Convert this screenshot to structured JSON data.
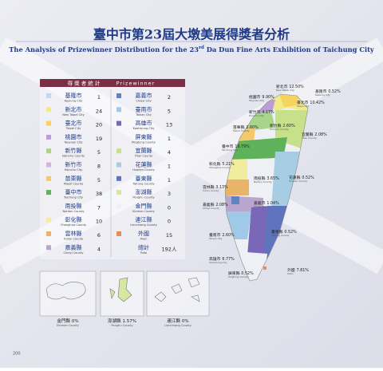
{
  "header": {
    "title": "臺中市第23屆大墩美展得獎者分析",
    "subtitle_before": "The Analysis of Prizewinner Distribution for the 23",
    "subtitle_sup": "rd",
    "subtitle_after": " Da Dun Fine Arts Exhibition of Taichung City"
  },
  "table": {
    "title": "得 獎 者 統 計",
    "title_en": "Prizewinner",
    "rows": [
      {
        "zh": "基隆市",
        "en": "Keelung City",
        "count": "1",
        "color": "#c9d6ee"
      },
      {
        "zh": "新北市",
        "en": "New Taipei City",
        "count": "24",
        "color": "#f2e98a"
      },
      {
        "zh": "臺北市",
        "en": "Taipei City",
        "count": "20",
        "color": "#f6d35c"
      },
      {
        "zh": "桃園市",
        "en": "Taoyuan City",
        "count": "19",
        "color": "#b99fd6"
      },
      {
        "zh": "新竹縣",
        "en": "Hsinchu County",
        "count": "5",
        "color": "#a8d58a"
      },
      {
        "zh": "新竹市",
        "en": "Hsinchu City",
        "count": "8",
        "color": "#d6b3dc"
      },
      {
        "zh": "苗栗縣",
        "en": "Miaoli County",
        "count": "5",
        "color": "#f4c86d"
      },
      {
        "zh": "臺中市",
        "en": "Taichung City",
        "count": "38",
        "color": "#5fb15a"
      },
      {
        "zh": "南投縣",
        "en": "Nantou County",
        "count": "7",
        "color": "#eef0f6"
      },
      {
        "zh": "彰化縣",
        "en": "Changhua County",
        "count": "10",
        "color": "#f2ec9e"
      },
      {
        "zh": "雲林縣",
        "en": "Yunlin County",
        "count": "6",
        "color": "#e8b46a"
      },
      {
        "zh": "嘉義縣",
        "en": "Chiayi County",
        "count": "4",
        "color": "#b9a6cf"
      },
      {
        "zh": "嘉義市",
        "en": "Chiayi City",
        "count": "2",
        "color": "#5f82c4"
      },
      {
        "zh": "臺南市",
        "en": "Tainan City",
        "count": "5",
        "color": "#9fc9e6"
      },
      {
        "zh": "高雄市",
        "en": "Kaohsiung City",
        "count": "13",
        "color": "#7a67b8"
      },
      {
        "zh": "屏東縣",
        "en": "Pingtung County",
        "count": "1",
        "color": "#eef0f6"
      },
      {
        "zh": "宜蘭縣",
        "en": "Yilan County",
        "count": "4",
        "color": "#c7e08a"
      },
      {
        "zh": "花蓮縣",
        "en": "Hualien County",
        "count": "1",
        "color": "#a6cde4"
      },
      {
        "zh": "臺東縣",
        "en": "Taitung County",
        "count": "1",
        "color": "#5f74bd"
      },
      {
        "zh": "澎湖縣",
        "en": "Penghu County",
        "count": "3",
        "color": "#d6e7a4"
      },
      {
        "zh": "金門縣",
        "en": "Kinmen County",
        "count": "0",
        "color": "#eef0f6"
      },
      {
        "zh": "連江縣",
        "en": "Lienchiang County",
        "count": "0",
        "color": "#eef0f6"
      },
      {
        "zh": "外國",
        "en": "Alien",
        "count": "15",
        "color": "#ee8a5a"
      }
    ],
    "total_zh": "總計",
    "total_en": "Total",
    "total": "192人"
  },
  "map": {
    "labels": [
      {
        "zh": "新北市",
        "p": "12.50%",
        "en": "New Taipei City"
      },
      {
        "zh": "基隆市",
        "p": "0.52%",
        "en": "Keelung City"
      },
      {
        "zh": "臺北市",
        "p": "10.42%",
        "en": "Taipei City"
      },
      {
        "zh": "桃園市",
        "p": "9.90%",
        "en": "Taoyuan City"
      },
      {
        "zh": "新竹市",
        "p": "4.17%",
        "en": "Hsinchu City"
      },
      {
        "zh": "新竹縣",
        "p": "2.60%",
        "en": "Hsinchu County"
      },
      {
        "zh": "苗栗縣",
        "p": "2.60%",
        "en": "Miaoli County"
      },
      {
        "zh": "宜蘭縣",
        "p": "2.08%",
        "en": "Yilan County"
      },
      {
        "zh": "臺中市",
        "p": "19.79%",
        "en": "Taichung City"
      },
      {
        "zh": "彰化縣",
        "p": "5.21%",
        "en": "Changhua County"
      },
      {
        "zh": "花蓮縣",
        "p": "0.52%",
        "en": "Hualien County"
      },
      {
        "zh": "南投縣",
        "p": "3.65%",
        "en": "Nantou County"
      },
      {
        "zh": "雲林縣",
        "p": "3.13%",
        "en": "Yunlin County"
      },
      {
        "zh": "嘉義市",
        "p": "1.04%",
        "en": "Chiayi City"
      },
      {
        "zh": "嘉義縣",
        "p": "2.08%",
        "en": "Chiayi County"
      },
      {
        "zh": "臺南市",
        "p": "2.60%",
        "en": "Tainan City"
      },
      {
        "zh": "臺東縣",
        "p": "0.52%",
        "en": "Taitung County"
      },
      {
        "zh": "高雄市",
        "p": "6.77%",
        "en": "Kaohsiung City"
      },
      {
        "zh": "屏東縣",
        "p": "0.52%",
        "en": "Pingtung County"
      },
      {
        "zh": "外國",
        "p": "7.81%",
        "en": "Alien"
      }
    ],
    "insets": [
      {
        "zh": "金門縣",
        "p": "0%",
        "en": "Kinmen County"
      },
      {
        "zh": "澎湖縣",
        "p": "1.57%",
        "en": "Penghu County"
      },
      {
        "zh": "連江縣",
        "p": "0%",
        "en": "Lienchiang County"
      }
    ]
  },
  "page_number": "200"
}
